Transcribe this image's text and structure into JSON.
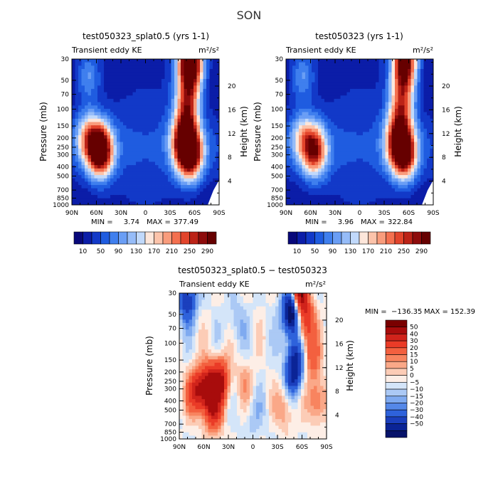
{
  "figure_title": "SON",
  "chart_data": [
    {
      "type": "heatmap",
      "title": "test050323_splat0.5 (yrs 1-1)",
      "subtitle_left": "Transient eddy KE",
      "units": "m²/s²",
      "ylabel": "Pressure (mb)",
      "ylabel_right": "Height (km)",
      "x_ticks": [
        "90N",
        "60N",
        "30N",
        "0",
        "30S",
        "60S",
        "90S"
      ],
      "y_ticks": [
        "30",
        "50",
        "70",
        "100",
        "150",
        "200",
        "250",
        "300",
        "400",
        "500",
        "700",
        "850",
        "1000"
      ],
      "y_ticks_right": [
        "4",
        "8",
        "12",
        "16",
        "20"
      ],
      "y_scale": "log",
      "stats": {
        "min_label": "MIN =",
        "min": "3.74",
        "max_label": "MAX =",
        "max": "377.49"
      },
      "colorbar": {
        "orientation": "horizontal",
        "labels": [
          "10",
          "50",
          "90",
          "130",
          "170",
          "210",
          "250",
          "290"
        ],
        "colors": [
          "#08087a",
          "#0b1da8",
          "#1239c8",
          "#1f5ce0",
          "#3f7fee",
          "#6a9ef5",
          "#96bcf8",
          "#c1d9fb",
          "#fde6da",
          "#fcc3aa",
          "#f99c7c",
          "#f4704f",
          "#e2442b",
          "#bc2317",
          "#8d0b0b",
          "#660000"
        ]
      },
      "blobs": [
        {
          "lat": 55,
          "p": 270,
          "value": 330
        },
        {
          "lat": 70,
          "p": 200,
          "value": 150
        },
        {
          "lat": -55,
          "p": 290,
          "value": 300
        },
        {
          "lat": -45,
          "p": 230,
          "value": 170
        },
        {
          "lat": -55,
          "p": 32,
          "value": 360
        },
        {
          "lat": -52,
          "p": 70,
          "value": 160
        },
        {
          "lat": -50,
          "p": 130,
          "value": 140
        },
        {
          "lat": 70,
          "p": 45,
          "value": 80
        }
      ]
    },
    {
      "type": "heatmap",
      "title": "test050323 (yrs 1-1)",
      "subtitle_left": "Transient eddy KE",
      "units": "m²/s²",
      "ylabel": "Pressure (mb)",
      "ylabel_right": "Height (km)",
      "x_ticks": [
        "90N",
        "60N",
        "30N",
        "0",
        "30S",
        "60S",
        "90S"
      ],
      "y_ticks": [
        "30",
        "50",
        "70",
        "100",
        "150",
        "200",
        "250",
        "300",
        "400",
        "500",
        "700",
        "850",
        "1000"
      ],
      "y_ticks_right": [
        "4",
        "8",
        "12",
        "16",
        "20"
      ],
      "y_scale": "log",
      "stats": {
        "min_label": "MIN =",
        "min": "3.96",
        "max_label": "MAX =",
        "max": "322.84"
      },
      "colorbar": {
        "orientation": "horizontal",
        "labels": [
          "10",
          "50",
          "90",
          "130",
          "170",
          "210",
          "250",
          "290"
        ],
        "colors": [
          "#08087a",
          "#0b1da8",
          "#1239c8",
          "#1f5ce0",
          "#3f7fee",
          "#6a9ef5",
          "#96bcf8",
          "#c1d9fb",
          "#fde6da",
          "#fcc3aa",
          "#f99c7c",
          "#f4704f",
          "#e2442b",
          "#bc2317",
          "#8d0b0b",
          "#660000"
        ]
      },
      "blobs": [
        {
          "lat": 55,
          "p": 270,
          "value": 230
        },
        {
          "lat": 70,
          "p": 200,
          "value": 110
        },
        {
          "lat": -55,
          "p": 290,
          "value": 270
        },
        {
          "lat": -45,
          "p": 230,
          "value": 160
        },
        {
          "lat": -55,
          "p": 32,
          "value": 300
        },
        {
          "lat": -52,
          "p": 70,
          "value": 150
        },
        {
          "lat": -50,
          "p": 130,
          "value": 130
        },
        {
          "lat": 70,
          "p": 45,
          "value": 80
        }
      ]
    },
    {
      "type": "heatmap",
      "title": "test050323_splat0.5 − test050323",
      "subtitle_left": "Transient eddy KE",
      "units": "m²/s²",
      "ylabel": "Pressure (mb)",
      "ylabel_right": "Height (km)",
      "x_ticks": [
        "90N",
        "60N",
        "30N",
        "0",
        "30S",
        "60S",
        "90S"
      ],
      "y_ticks": [
        "30",
        "50",
        "70",
        "100",
        "150",
        "200",
        "250",
        "300",
        "400",
        "500",
        "700",
        "850",
        "1000"
      ],
      "y_ticks_right": [
        "4",
        "8",
        "12",
        "16",
        "20"
      ],
      "y_scale": "log",
      "stats": {
        "min_label": "MIN =",
        "min": "−136.35",
        "max_label": "MAX =",
        "max": "152.39"
      },
      "colorbar": {
        "orientation": "vertical",
        "labels": [
          "50",
          "40",
          "30",
          "20",
          "15",
          "10",
          "5",
          "0",
          "−5",
          "−10",
          "−15",
          "−20",
          "−30",
          "−40",
          "−50"
        ],
        "colors": [
          "#7a0000",
          "#a80c0c",
          "#d0231b",
          "#ea3b27",
          "#f3603f",
          "#f8845f",
          "#faa888",
          "#fcccb6",
          "#fdeee6",
          "#d4e5f9",
          "#abc9f5",
          "#7faaf0",
          "#5588e8",
          "#2e62db",
          "#1b3fbd",
          "#0b2496",
          "#07136a"
        ]
      },
      "blobs": [
        {
          "lat": 55,
          "p": 300,
          "value": 60
        },
        {
          "lat": 40,
          "p": 250,
          "value": 50
        },
        {
          "lat": 70,
          "p": 320,
          "value": 40
        },
        {
          "lat": 48,
          "p": 550,
          "value": 30
        },
        {
          "lat": -55,
          "p": 32,
          "value": 80
        },
        {
          "lat": -65,
          "p": 60,
          "value": 35
        },
        {
          "lat": -72,
          "p": 140,
          "value": 25
        },
        {
          "lat": -48,
          "p": 45,
          "value": -90
        },
        {
          "lat": -52,
          "p": 150,
          "value": -40
        },
        {
          "lat": -48,
          "p": 250,
          "value": -25
        },
        {
          "lat": -40,
          "p": 450,
          "value": 20
        },
        {
          "lat": -78,
          "p": 400,
          "value": 25
        },
        {
          "lat": 10,
          "p": 250,
          "value": 12
        },
        {
          "lat": 80,
          "p": 35,
          "value": -40
        },
        {
          "lat": 20,
          "p": 60,
          "value": -10
        },
        {
          "lat": 0,
          "p": 600,
          "value": -8
        }
      ]
    }
  ]
}
